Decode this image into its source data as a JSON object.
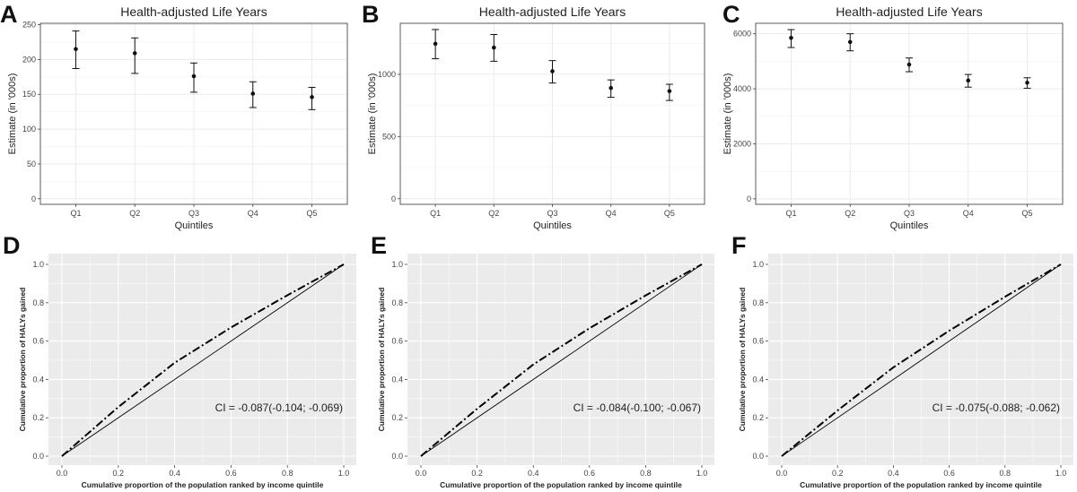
{
  "chart_data": [
    {
      "id": "A",
      "type": "scatter",
      "title": "Health-adjusted Life Years",
      "xlabel": "Quintiles",
      "ylabel": "Estimate (in '000s)",
      "categories": [
        "Q1",
        "Q2",
        "Q3",
        "Q4",
        "Q5"
      ],
      "values": [
        215,
        209,
        176,
        151,
        146
      ],
      "lower": [
        187,
        180,
        153,
        131,
        128
      ],
      "upper": [
        241,
        231,
        195,
        168,
        160
      ],
      "ylim": [
        -8,
        252
      ],
      "yticks": [
        0,
        50,
        100,
        150,
        200,
        250
      ],
      "grid": true
    },
    {
      "id": "B",
      "type": "scatter",
      "title": "Health-adjusted Life Years",
      "xlabel": "Quintiles",
      "ylabel": "Estimate (in '000s)",
      "categories": [
        "Q1",
        "Q2",
        "Q3",
        "Q4",
        "Q5"
      ],
      "values": [
        1245,
        1215,
        1025,
        890,
        865
      ],
      "lower": [
        1125,
        1105,
        930,
        815,
        790
      ],
      "upper": [
        1360,
        1320,
        1110,
        955,
        920
      ],
      "ylim": [
        -45,
        1410
      ],
      "yticks": [
        0,
        500,
        1000
      ],
      "grid": true
    },
    {
      "id": "C",
      "type": "scatter",
      "title": "Health-adjusted Life Years",
      "xlabel": "Quintiles",
      "ylabel": "Estimate (in '000s)",
      "categories": [
        "Q1",
        "Q2",
        "Q3",
        "Q4",
        "Q5"
      ],
      "values": [
        5850,
        5700,
        4880,
        4300,
        4220
      ],
      "lower": [
        5500,
        5380,
        4620,
        4060,
        4020
      ],
      "upper": [
        6150,
        6000,
        5120,
        4520,
        4400
      ],
      "ylim": [
        -200,
        6380
      ],
      "yticks": [
        0,
        2000,
        4000,
        6000
      ],
      "grid": true
    },
    {
      "id": "D",
      "type": "line",
      "xlabel": "Cumulative proportion of the population ranked by income quintile",
      "ylabel": "Cumulative proportion of HALYs gained",
      "xlim": [
        0,
        1
      ],
      "ylim": [
        0,
        1
      ],
      "xticks": [
        0.0,
        0.2,
        0.4,
        0.6,
        0.8,
        1.0
      ],
      "yticks": [
        0.0,
        0.2,
        0.4,
        0.6,
        0.8,
        1.0
      ],
      "annotation": "CI = -0.087(-0.104; -0.069)",
      "series": [
        {
          "name": "equality line",
          "style": "solid",
          "x": [
            0,
            1
          ],
          "y": [
            0,
            1
          ]
        },
        {
          "name": "concentration curve",
          "style": "dashdot",
          "x": [
            0,
            0.2,
            0.4,
            0.6,
            0.8,
            1.0
          ],
          "y": [
            0,
            0.256,
            0.487,
            0.671,
            0.839,
            1.0
          ]
        }
      ]
    },
    {
      "id": "E",
      "type": "line",
      "xlabel": "Cumulative proportion of the population ranked by income quintile",
      "ylabel": "Cumulative proportion of HALYs gained",
      "xlim": [
        0,
        1
      ],
      "ylim": [
        0,
        1
      ],
      "xticks": [
        0.0,
        0.2,
        0.4,
        0.6,
        0.8,
        1.0
      ],
      "yticks": [
        0.0,
        0.2,
        0.4,
        0.6,
        0.8,
        1.0
      ],
      "annotation": "CI = -0.084(-0.100; -0.067)",
      "series": [
        {
          "name": "equality line",
          "style": "solid",
          "x": [
            0,
            1
          ],
          "y": [
            0,
            1
          ]
        },
        {
          "name": "concentration curve",
          "style": "dashdot",
          "x": [
            0,
            0.2,
            0.4,
            0.6,
            0.8,
            1.0
          ],
          "y": [
            0,
            0.247,
            0.478,
            0.667,
            0.838,
            1.0
          ]
        }
      ]
    },
    {
      "id": "F",
      "type": "line",
      "xlabel": "Cumulative proportion of the population ranked by income quintile",
      "ylabel": "Cumulative proportion of HALYs gained",
      "xlim": [
        0,
        1
      ],
      "ylim": [
        0,
        1
      ],
      "xticks": [
        0.0,
        0.2,
        0.4,
        0.6,
        0.8,
        1.0
      ],
      "yticks": [
        0.0,
        0.2,
        0.4,
        0.6,
        0.8,
        1.0
      ],
      "annotation": "CI = -0.075(-0.088; -0.062)",
      "series": [
        {
          "name": "equality line",
          "style": "solid",
          "x": [
            0,
            1
          ],
          "y": [
            0,
            1
          ]
        },
        {
          "name": "concentration curve",
          "style": "dashdot",
          "x": [
            0,
            0.2,
            0.4,
            0.6,
            0.8,
            1.0
          ],
          "y": [
            0,
            0.238,
            0.463,
            0.654,
            0.831,
            1.0
          ]
        }
      ]
    }
  ],
  "colors": {
    "frame": "#333333",
    "grid_light": "#ebebeb",
    "panel_gray": "#ebebeb",
    "grid_white": "#ffffff",
    "ink": "#111111"
  }
}
